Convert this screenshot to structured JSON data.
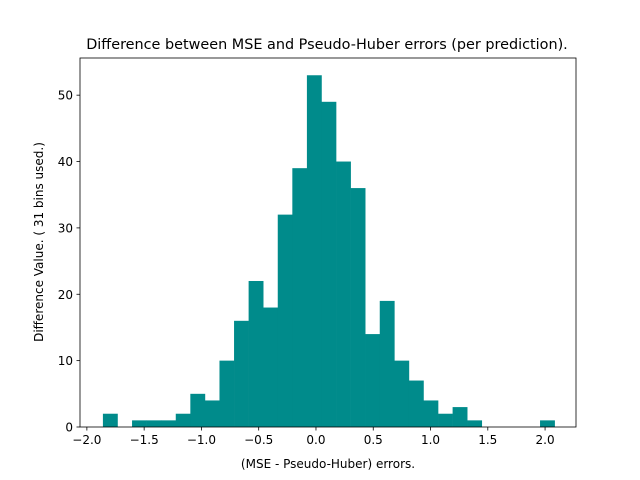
{
  "chart_data": {
    "type": "bar",
    "title": "Difference between  MSE and Pseudo-Huber errors (per prediction).",
    "xlabel": "(MSE - Pseudo-Huber) errors.",
    "ylabel": "Difference Value. ( 31 bins used.)",
    "xlim": [
      -2.06,
      2.27
    ],
    "ylim": [
      0,
      55.6
    ],
    "bar_color": "#008b8b",
    "grid": false,
    "legend": "none",
    "bin_start": -1.86,
    "bin_width": 0.1272,
    "values": [
      2,
      0,
      1,
      1,
      1,
      2,
      5,
      4,
      10,
      16,
      22,
      18,
      32,
      39,
      53,
      49,
      40,
      36,
      14,
      19,
      10,
      7,
      4,
      2,
      3,
      1,
      0,
      0,
      0,
      0,
      1
    ],
    "xticks": [
      -2.0,
      -1.5,
      -1.0,
      -0.5,
      0.0,
      0.5,
      1.0,
      1.5,
      2.0
    ],
    "xtick_labels": [
      "−2.0",
      "−1.5",
      "−1.0",
      "−0.5",
      "0.0",
      "0.5",
      "1.0",
      "1.5",
      "2.0"
    ],
    "yticks": [
      0,
      10,
      20,
      30,
      40,
      50
    ],
    "ytick_labels": [
      "0",
      "10",
      "20",
      "30",
      "40",
      "50"
    ]
  }
}
